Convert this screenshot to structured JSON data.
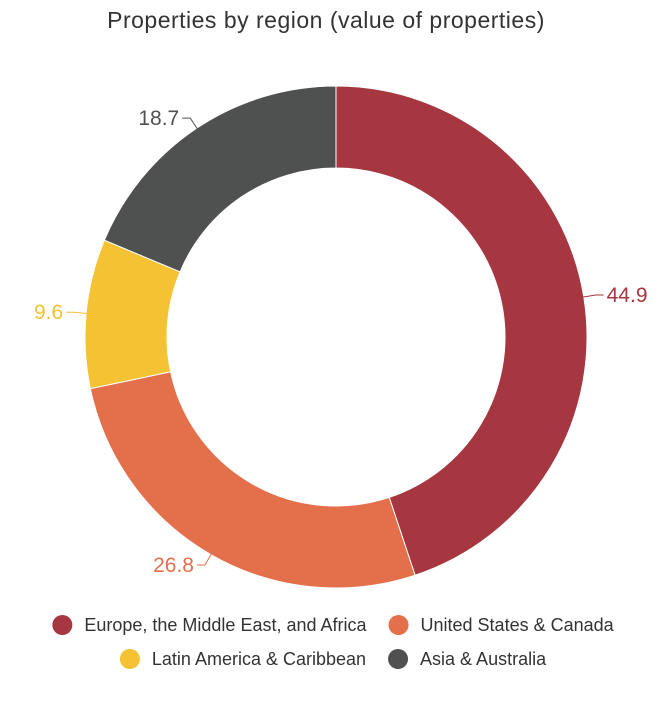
{
  "chart_data": {
    "type": "pie",
    "title": "Properties by region (value of properties)",
    "series": [
      {
        "name": "Europe, the Middle East, and Africa",
        "value": 44.9,
        "label": "44.9"
      },
      {
        "name": "United States & Canada",
        "value": 26.8,
        "label": "26.8"
      },
      {
        "name": "Latin America & Caribbean",
        "value": 9.6,
        "label": "9.6"
      },
      {
        "name": "Asia & Australia",
        "value": 18.7,
        "label": "18.7"
      }
    ],
    "colors": [
      "#a6363f",
      "#e3704b",
      "#f4c232",
      "#4f5050"
    ],
    "donut": true,
    "legend_position": "bottom"
  }
}
